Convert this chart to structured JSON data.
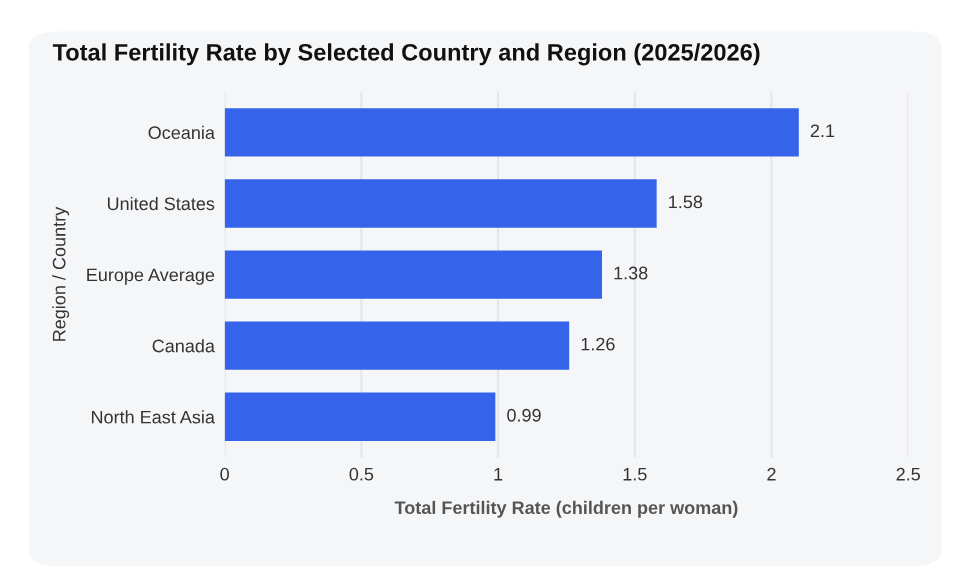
{
  "chart_data": {
    "type": "bar",
    "orientation": "horizontal",
    "title": "Total Fertility Rate by Selected Country and Region (2025/2026)",
    "xlabel": "Total Fertility Rate (children per woman)",
    "ylabel": "Region / Country",
    "categories": [
      "Oceania",
      "United States",
      "Europe Average",
      "Canada",
      "North East Asia"
    ],
    "values": [
      2.1,
      1.58,
      1.38,
      1.26,
      0.99
    ],
    "color": "#3563e9",
    "xlim": [
      0,
      2.5
    ],
    "xticks": [
      0,
      0.5,
      1,
      1.5,
      2,
      2.5
    ],
    "grid": "x",
    "data_labels": true
  }
}
